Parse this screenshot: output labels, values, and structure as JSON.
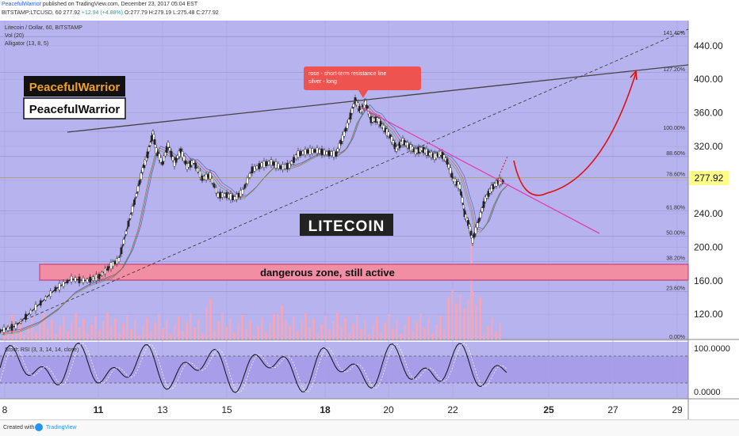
{
  "header": {
    "author": "PeacefulWarrior",
    "published": " published on TradingView.com, December 23, 2017 05:04 EST",
    "ticker": "BITSTAMP:LTCUSD, 60",
    "last": "277.92",
    "change": "+12.94 (+4.88%)",
    "ohlc": "O:277.79 H:279.19 L:275.48 C:277.92"
  },
  "chart_data": {
    "type": "candlestick",
    "symbol_title": "Litecoin / Dollar, 60, BITSTAMP",
    "indicators": [
      "Vol (20)",
      "Alligator (13, 8, 5)"
    ],
    "stoch_label": "Stoch RSI (3, 3, 14, 14, close)",
    "price_axis": {
      "ticks": [
        "440.00",
        "400.00",
        "360.00",
        "320.00",
        "280.00",
        "240.00",
        "200.00",
        "160.00",
        "120.00"
      ],
      "min": 90,
      "max": 470,
      "current": "277.92"
    },
    "time_axis": [
      "8",
      "11",
      "13",
      "15",
      "18",
      "20",
      "22",
      "25",
      "27",
      "29"
    ],
    "stoch_axis": [
      "100.0000",
      "0.0000"
    ],
    "fib_levels": [
      {
        "label": "141.40%",
        "price": 451
      },
      {
        "label": "127.20%",
        "price": 408
      },
      {
        "label": "100.00%",
        "price": 338
      },
      {
        "label": "88.60%",
        "price": 308
      },
      {
        "label": "78.60%",
        "price": 283
      },
      {
        "label": "61.80%",
        "price": 243
      },
      {
        "label": "50.00%",
        "price": 213
      },
      {
        "label": "38.20%",
        "price": 183
      },
      {
        "label": "23.60%",
        "price": 147
      },
      {
        "label": "0.00%",
        "price": 89
      }
    ],
    "price_path": [
      [
        0,
        100
      ],
      [
        20,
        106
      ],
      [
        45,
        128
      ],
      [
        70,
        150
      ],
      [
        90,
        162
      ],
      [
        110,
        160
      ],
      [
        125,
        165
      ],
      [
        140,
        178
      ],
      [
        150,
        185
      ],
      [
        162,
        228
      ],
      [
        172,
        262
      ],
      [
        180,
        292
      ],
      [
        186,
        310
      ],
      [
        193,
        336
      ],
      [
        197,
        315
      ],
      [
        205,
        300
      ],
      [
        212,
        322
      ],
      [
        220,
        300
      ],
      [
        228,
        315
      ],
      [
        236,
        296
      ],
      [
        244,
        302
      ],
      [
        255,
        282
      ],
      [
        265,
        285
      ],
      [
        275,
        262
      ],
      [
        286,
        262
      ],
      [
        296,
        258
      ],
      [
        306,
        266
      ],
      [
        318,
        292
      ],
      [
        330,
        298
      ],
      [
        342,
        301
      ],
      [
        354,
        295
      ],
      [
        365,
        297
      ],
      [
        376,
        311
      ],
      [
        388,
        314
      ],
      [
        400,
        315
      ],
      [
        412,
        312
      ],
      [
        424,
        311
      ],
      [
        432,
        330
      ],
      [
        440,
        350
      ],
      [
        448,
        375
      ],
      [
        455,
        362
      ],
      [
        461,
        372
      ],
      [
        468,
        352
      ],
      [
        476,
        352
      ],
      [
        484,
        342
      ],
      [
        492,
        332
      ],
      [
        500,
        317
      ],
      [
        508,
        326
      ],
      [
        516,
        320
      ],
      [
        524,
        314
      ],
      [
        532,
        317
      ],
      [
        540,
        312
      ],
      [
        548,
        308
      ],
      [
        556,
        312
      ],
      [
        564,
        302
      ],
      [
        572,
        280
      ],
      [
        580,
        272
      ],
      [
        586,
        240
      ],
      [
        592,
        225
      ],
      [
        596,
        208
      ],
      [
        604,
        232
      ],
      [
        612,
        257
      ],
      [
        620,
        270
      ],
      [
        628,
        278
      ],
      [
        636,
        278
      ]
    ],
    "annotations": [
      {
        "text": "PeacefulWarrior",
        "style": "dark"
      },
      {
        "text": "PeacefulWarrior",
        "style": "light"
      },
      {
        "text": "LITECOIN"
      },
      {
        "text": "dangerous zone, still active"
      },
      {
        "text": "rose - short-term resistance line\nsilver - long"
      }
    ]
  },
  "footer": {
    "created_with": "Created with",
    "brand": "TradingView"
  }
}
